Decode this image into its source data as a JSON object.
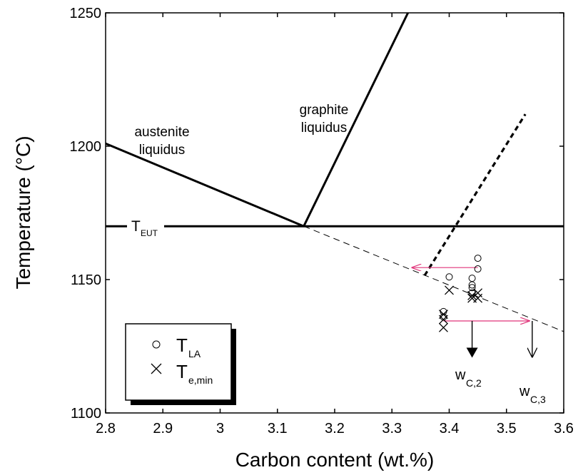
{
  "chart_data": {
    "type": "line",
    "xlabel": "Carbon content (wt.%)",
    "ylabel": "Temperature (°C)",
    "xlim": [
      2.8,
      3.6
    ],
    "ylim": [
      1100,
      1250
    ],
    "xticks": [
      2.8,
      2.9,
      3.0,
      3.1,
      3.2,
      3.3,
      3.4,
      3.5,
      3.6
    ],
    "xtick_labels": [
      "2.8",
      "2.9",
      "3",
      "3.1",
      "3.2",
      "3.3",
      "3.4",
      "3.5",
      "3.6"
    ],
    "yticks": [
      1100,
      1150,
      1200,
      1250
    ],
    "ytick_labels": [
      "1100",
      "1150",
      "1200",
      "1250"
    ],
    "grid": false,
    "lines": [
      {
        "name": "austenite liquidus",
        "style": "solid-thick",
        "points": [
          [
            2.8,
            1201
          ],
          [
            3.146,
            1170
          ]
        ]
      },
      {
        "name": "graphite liquidus",
        "style": "solid-thick",
        "points": [
          [
            3.146,
            1170
          ],
          [
            3.328,
            1250
          ]
        ]
      },
      {
        "name": "T_EUT",
        "style": "solid-thick",
        "points": [
          [
            2.8,
            1170
          ],
          [
            3.6,
            1170
          ]
        ]
      },
      {
        "style": "dashed-thin",
        "points": [
          [
            3.146,
            1170
          ],
          [
            3.6,
            1130.5
          ]
        ]
      },
      {
        "style": "dashed-thick",
        "points": [
          [
            3.357,
            1151.5
          ],
          [
            3.533,
            1212
          ]
        ]
      }
    ],
    "series": [
      {
        "name": "T_LA",
        "marker": "circle",
        "points": [
          [
            3.39,
            1138
          ],
          [
            3.39,
            1136
          ],
          [
            3.4,
            1151
          ],
          [
            3.44,
            1150.5
          ],
          [
            3.44,
            1148
          ],
          [
            3.44,
            1147
          ],
          [
            3.44,
            1145
          ],
          [
            3.45,
            1154
          ],
          [
            3.45,
            1158
          ]
        ]
      },
      {
        "name": "T_e,min",
        "marker": "x",
        "points": [
          [
            3.39,
            1137
          ],
          [
            3.39,
            1135
          ],
          [
            3.39,
            1132
          ],
          [
            3.4,
            1146
          ],
          [
            3.44,
            1144
          ],
          [
            3.44,
            1143
          ],
          [
            3.45,
            1145
          ],
          [
            3.45,
            1143
          ]
        ]
      }
    ],
    "arrows": [
      {
        "color": "#e0357a",
        "from": [
          3.45,
          1154.5
        ],
        "to": [
          3.335,
          1154.5
        ]
      },
      {
        "color": "#e0357a",
        "from": [
          3.39,
          1134.5
        ],
        "to": [
          3.54,
          1134.5
        ]
      },
      {
        "color": "#000000",
        "from": [
          3.44,
          1134.5
        ],
        "to": [
          3.44,
          1121
        ]
      },
      {
        "color": "#000000",
        "from": [
          3.545,
          1134.5
        ],
        "to": [
          3.545,
          1121
        ]
      }
    ],
    "annotations": [
      {
        "text": "austenite",
        "line": 1
      },
      {
        "text": "liquidus",
        "line": 2
      },
      {
        "text": "graphite",
        "line": 1
      },
      {
        "text": "liquidus",
        "line": 2
      },
      {
        "text": "T",
        "sub": "EUT"
      },
      {
        "text": "w",
        "sub": "C,2"
      },
      {
        "text": "w",
        "sub": "C,3"
      }
    ],
    "legend": {
      "placement": "bottom-left",
      "entries": [
        {
          "marker": "circle",
          "text": "T",
          "sub": "LA"
        },
        {
          "marker": "x",
          "text": "T",
          "sub": "e,min"
        }
      ]
    }
  }
}
